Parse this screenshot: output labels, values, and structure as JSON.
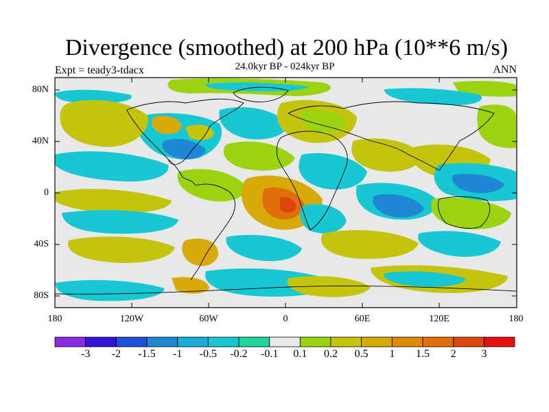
{
  "title": "Divergence (smoothed) at 200 hPa (10**6 m/s)",
  "subtitle": "24.0kyr BP - 024kyr BP",
  "experiment_label": "Expt = teady3-tdacx",
  "season_label": "ANN",
  "y_ticks": [
    "80N",
    "40N",
    "0",
    "40S",
    "80S"
  ],
  "x_ticks": [
    "180",
    "120W",
    "60W",
    "0",
    "60E",
    "120E",
    "180"
  ],
  "colorbar": {
    "colors": [
      "#8a2be2",
      "#3214d8",
      "#1e50d8",
      "#1f87d6",
      "#19acd6",
      "#17c8d2",
      "#1fd6a0",
      "#e8e8e8",
      "#9bd40e",
      "#c4c40c",
      "#d8aa08",
      "#e08a0a",
      "#e06e0a",
      "#dc460a",
      "#e61010"
    ],
    "labels": [
      "-3",
      "-2",
      "-1.5",
      "-1",
      "-0.5",
      "-0.2",
      "-0.1",
      "0.1",
      "0.2",
      "0.5",
      "1",
      "1.5",
      "2",
      "3"
    ]
  },
  "colors": {
    "land_background": "#e8e8e8",
    "blue": "#17c8d2",
    "deep_blue": "#1f87d6",
    "yellow_green": "#9bd40e",
    "olive": "#c4c40c",
    "orange": "#d8aa08",
    "red_orange": "#e06e0a"
  }
}
